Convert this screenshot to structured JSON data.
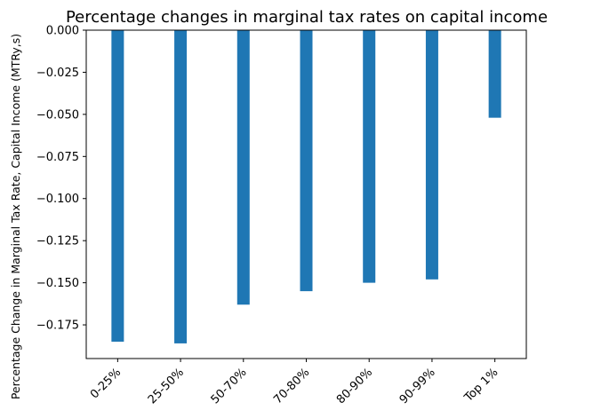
{
  "chart_data": {
    "type": "bar",
    "title": "Percentage changes in marginal tax rates on capital income",
    "xlabel": "",
    "ylabel": "Percentage Change in Marginal Tax Rate, Capital Income (MTRy,s)",
    "categories": [
      "0-25%",
      "25-50%",
      "50-70%",
      "70-80%",
      "80-90%",
      "90-99%",
      "Top 1%"
    ],
    "values": [
      -0.185,
      -0.186,
      -0.163,
      -0.155,
      -0.15,
      -0.148,
      -0.052
    ],
    "ylim": [
      -0.195,
      0.0
    ],
    "yticks": [
      "0.000",
      "−0.025",
      "−0.050",
      "−0.075",
      "−0.100",
      "−0.125",
      "−0.150",
      "−0.175"
    ],
    "ytick_values": [
      0.0,
      -0.025,
      -0.05,
      -0.075,
      -0.1,
      -0.125,
      -0.15,
      -0.175
    ],
    "grid": false,
    "bar_color": "#1f77b4"
  }
}
